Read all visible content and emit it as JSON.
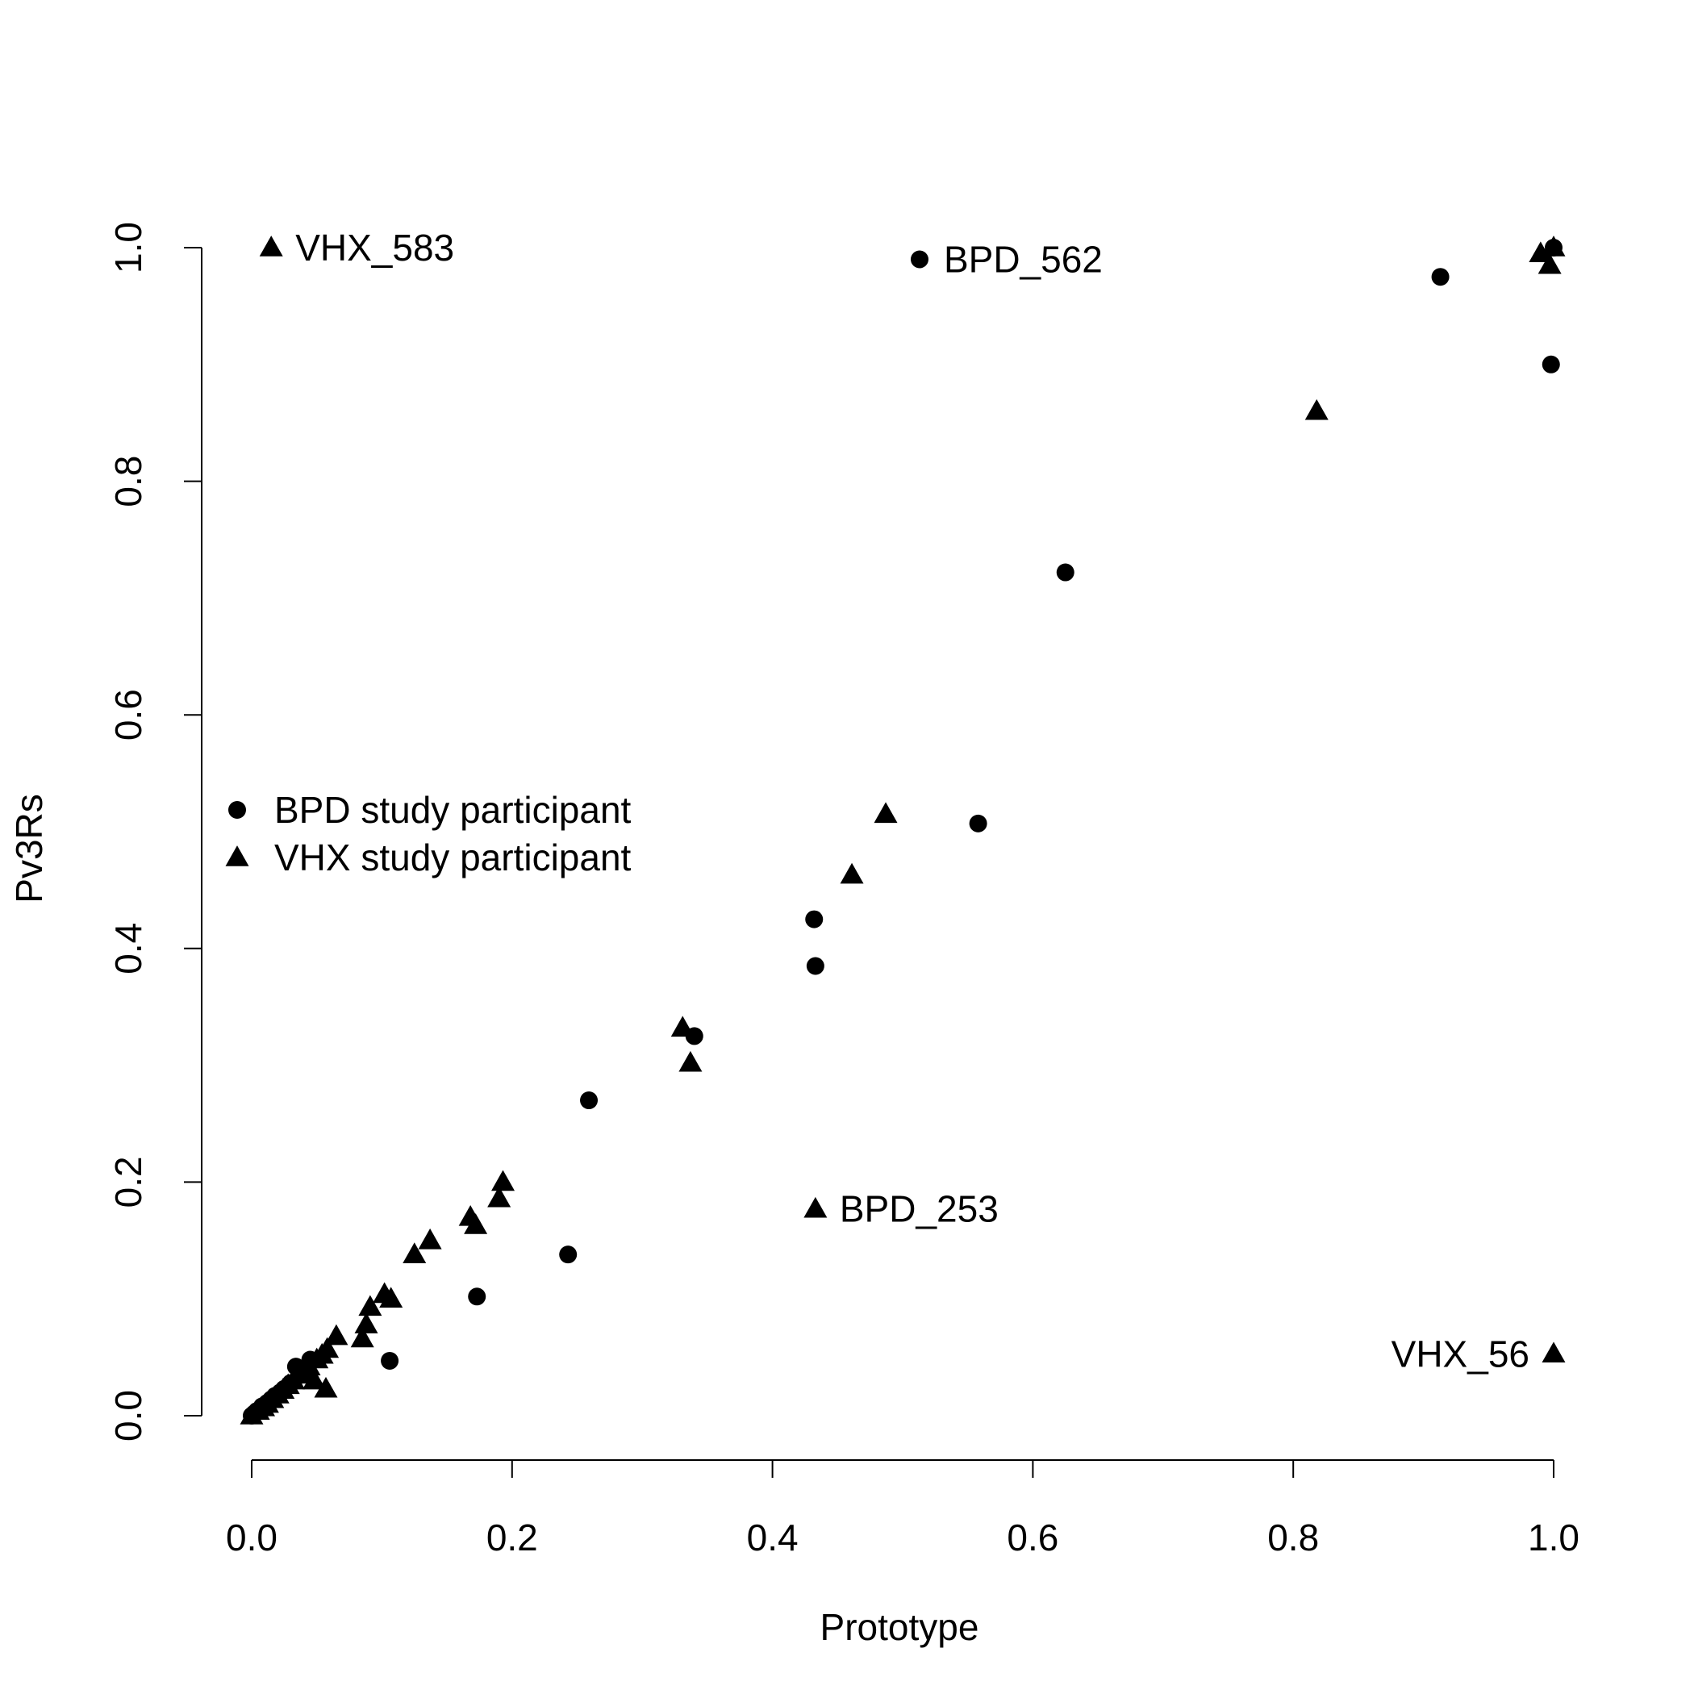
{
  "chart_data": {
    "type": "scatter",
    "title": "",
    "xlabel": "Prototype",
    "ylabel": "Pv3Rs",
    "xlim": [
      0,
      1
    ],
    "ylim": [
      0,
      1
    ],
    "x_ticks": [
      "0.0",
      "0.2",
      "0.4",
      "0.6",
      "0.8",
      "1.0"
    ],
    "y_ticks": [
      "0.0",
      "0.2",
      "0.4",
      "0.6",
      "0.8",
      "1.0"
    ],
    "grid": false,
    "legend_position": "left-middle",
    "series": [
      {
        "name": "BPD study participant",
        "marker": "circle",
        "color": "#000000",
        "points": [
          [
            0.0,
            0.0
          ],
          [
            0.002,
            0.002
          ],
          [
            0.004,
            0.004
          ],
          [
            0.006,
            0.005
          ],
          [
            0.008,
            0.008
          ],
          [
            0.01,
            0.009
          ],
          [
            0.012,
            0.011
          ],
          [
            0.015,
            0.014
          ],
          [
            0.018,
            0.017
          ],
          [
            0.022,
            0.02
          ],
          [
            0.025,
            0.023
          ],
          [
            0.03,
            0.028
          ],
          [
            0.034,
            0.042
          ],
          [
            0.038,
            0.035
          ],
          [
            0.045,
            0.048
          ],
          [
            0.106,
            0.047
          ],
          [
            0.173,
            0.102
          ],
          [
            0.243,
            0.138
          ],
          [
            0.259,
            0.27
          ],
          [
            0.34,
            0.325
          ],
          [
            0.432,
            0.425
          ],
          [
            0.433,
            0.385
          ],
          [
            0.513,
            0.99
          ],
          [
            0.558,
            0.507
          ],
          [
            0.625,
            0.722
          ],
          [
            0.913,
            0.975
          ],
          [
            0.998,
            0.9
          ],
          [
            1.0,
            1.0
          ]
        ]
      },
      {
        "name": "VHX study participant",
        "marker": "triangle",
        "color": "#000000",
        "points": [
          [
            0.0,
            0.0
          ],
          [
            0.005,
            0.004
          ],
          [
            0.009,
            0.007
          ],
          [
            0.012,
            0.01
          ],
          [
            0.016,
            0.014
          ],
          [
            0.02,
            0.018
          ],
          [
            0.024,
            0.022
          ],
          [
            0.028,
            0.026
          ],
          [
            0.032,
            0.03
          ],
          [
            0.036,
            0.035
          ],
          [
            0.04,
            0.038
          ],
          [
            0.044,
            0.042
          ],
          [
            0.05,
            0.048
          ],
          [
            0.054,
            0.052
          ],
          [
            0.058,
            0.057
          ],
          [
            0.048,
            0.03
          ],
          [
            0.057,
            0.023
          ],
          [
            0.065,
            0.068
          ],
          [
            0.085,
            0.066
          ],
          [
            0.088,
            0.078
          ],
          [
            0.091,
            0.093
          ],
          [
            0.102,
            0.104
          ],
          [
            0.107,
            0.1
          ],
          [
            0.125,
            0.138
          ],
          [
            0.137,
            0.15
          ],
          [
            0.168,
            0.17
          ],
          [
            0.172,
            0.163
          ],
          [
            0.19,
            0.186
          ],
          [
            0.193,
            0.2
          ],
          [
            0.331,
            0.332
          ],
          [
            0.337,
            0.302
          ],
          [
            0.433,
            0.177
          ],
          [
            0.461,
            0.463
          ],
          [
            0.487,
            0.515
          ],
          [
            0.818,
            0.86
          ],
          [
            0.99,
            0.995
          ],
          [
            0.997,
            0.985
          ],
          [
            1.0,
            1.0
          ],
          [
            1.0,
            0.053
          ],
          [
            0.015,
            1.0
          ]
        ]
      }
    ],
    "annotations": [
      {
        "text": "VHX_583",
        "x": 0.015,
        "y": 1.0,
        "side": "right"
      },
      {
        "text": "BPD_562",
        "x": 0.513,
        "y": 0.99,
        "side": "right"
      },
      {
        "text": "BPD_253",
        "x": 0.433,
        "y": 0.177,
        "side": "right"
      },
      {
        "text": "VHX_56",
        "x": 1.0,
        "y": 0.053,
        "side": "left"
      }
    ]
  }
}
